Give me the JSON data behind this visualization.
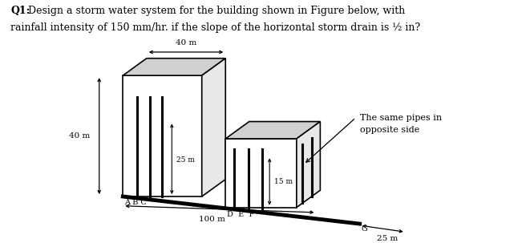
{
  "title_bold": "Q1:",
  "title_rest1": " Design a storm water system for the building shown in Figure below, with",
  "title_line2": "rainfall intensity of 150 mm/hr. if the slope of the horizontal storm drain is ½ in?",
  "label_40m_vert": "40 m",
  "label_40m_top": "40 m",
  "label_25m": "25 m",
  "label_15m": "15 m",
  "label_100m": "100 m",
  "label_25m_right": "25 m",
  "labels_ABC": "ABC",
  "label_A": "A",
  "label_B": "B",
  "label_C": "C",
  "label_D": "D",
  "label_E": "E",
  "label_F": "F",
  "label_G": "G",
  "note_line1": "The same pipes in",
  "note_line2": "opposite side",
  "title_fontsize": 9.0,
  "label_fontsize": 7.5,
  "note_fontsize": 8.0,
  "bg_color": "white",
  "building_face": "white",
  "building_top": "#d0d0d0",
  "building_side": "#e8e8e8",
  "pipe_color": "black",
  "drain_color": "black",
  "line_color": "black"
}
